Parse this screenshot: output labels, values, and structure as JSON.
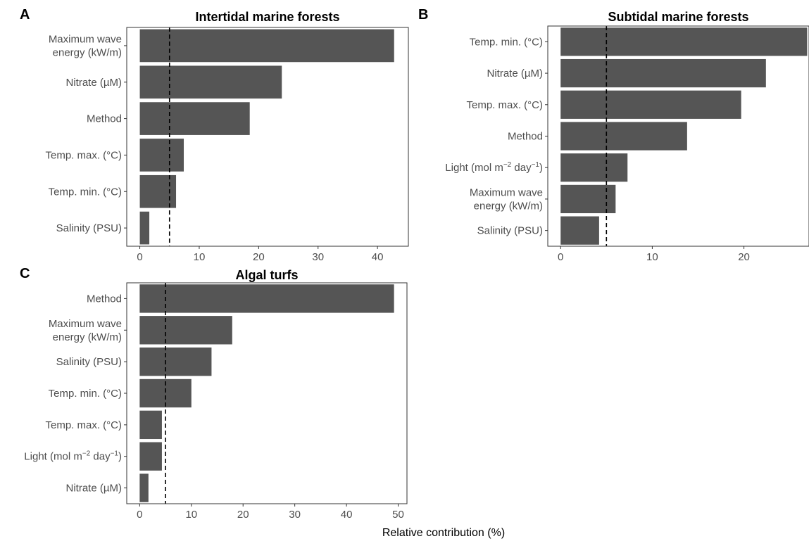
{
  "figure": {
    "panels": [
      {
        "letter": "A",
        "title": "Intertidal marine forests"
      },
      {
        "letter": "B",
        "title": "Subtidal marine forests"
      },
      {
        "letter": "C",
        "title": "Algal turfs"
      }
    ],
    "xlabel": "Relative contribution (%)",
    "bar_color": "#555555",
    "reference_line_color": "#000000"
  },
  "chart_data": [
    {
      "type": "bar",
      "orientation": "horizontal",
      "title": "Intertidal marine forests",
      "categories": [
        "Maximum wave energy (kW/m)",
        "Nitrate (µM)",
        "Method",
        "Temp. max. (°C)",
        "Temp. min. (°C)",
        "Salinity (PSU)"
      ],
      "category_lines": [
        [
          "Maximum wave",
          "energy (kW/m)"
        ],
        [
          "Nitrate (µM)"
        ],
        [
          "Method"
        ],
        [
          "Temp. max. (°C)"
        ],
        [
          "Temp. min. (°C)"
        ],
        [
          "Salinity (PSU)"
        ]
      ],
      "values": [
        42.8,
        23.9,
        18.5,
        7.4,
        6.1,
        1.6
      ],
      "xlim": [
        -2.2,
        45.2
      ],
      "xticks": [
        0,
        10,
        20,
        30,
        40
      ],
      "reference_line": 5,
      "grid": false
    },
    {
      "type": "bar",
      "orientation": "horizontal",
      "title": "Subtidal marine forests",
      "categories": [
        "Temp. min. (°C)",
        "Nitrate (µM)",
        "Temp. max. (°C)",
        "Method",
        "Light (mol m−2 day−1)",
        "Maximum wave energy (kW/m)",
        "Salinity (PSU)"
      ],
      "category_lines": [
        [
          "Temp. min. (°C)"
        ],
        [
          "Nitrate (µM)"
        ],
        [
          "Temp. max. (°C)"
        ],
        [
          "Method"
        ],
        [
          "Light (mol m−2 day−1)"
        ],
        [
          "Maximum wave",
          "energy (kW/m)"
        ],
        [
          "Salinity (PSU)"
        ]
      ],
      "values": [
        26.9,
        22.4,
        19.7,
        13.8,
        7.3,
        6.0,
        4.2
      ],
      "xlim": [
        -1.4,
        27.1
      ],
      "xticks": [
        0,
        10,
        20
      ],
      "reference_line": 5,
      "grid": false
    },
    {
      "type": "bar",
      "orientation": "horizontal",
      "title": "Algal turfs",
      "categories": [
        "Method",
        "Maximum wave energy (kW/m)",
        "Salinity (PSU)",
        "Temp. min. (°C)",
        "Temp. max. (°C)",
        "Light (mol m−2 day−1)",
        "Nitrate (µM)"
      ],
      "category_lines": [
        [
          "Method"
        ],
        [
          "Maximum wave",
          "energy (kW/m)"
        ],
        [
          "Salinity (PSU)"
        ],
        [
          "Temp. min. (°C)"
        ],
        [
          "Temp. max. (°C)"
        ],
        [
          "Light (mol m−2 day−1)"
        ],
        [
          "Nitrate (µM)"
        ]
      ],
      "values": [
        49.2,
        17.9,
        13.9,
        10.0,
        4.3,
        4.3,
        1.7
      ],
      "xlim": [
        -2.5,
        51.7
      ],
      "xticks": [
        0,
        10,
        20,
        30,
        40,
        50
      ],
      "reference_line": 5,
      "grid": false,
      "xlabel": "Relative contribution (%)"
    }
  ]
}
